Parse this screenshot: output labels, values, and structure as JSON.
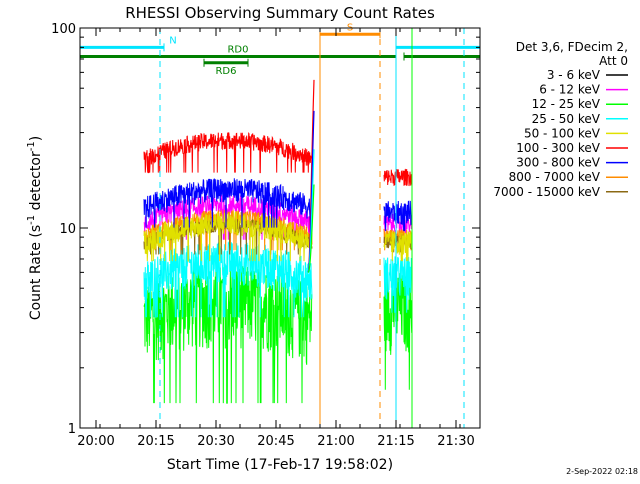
{
  "chart_data": {
    "type": "line",
    "title": "RHESSI Observing Summary Count Rates",
    "xlabel": "Start Time (17-Feb-17 19:58:02)",
    "ylabel_main": "Count Rate (s",
    "ylabel_sup": "-1",
    "ylabel_mid": " detector",
    "ylabel_sup2": "-1",
    "ylabel_end": ")",
    "y_scale": "log",
    "ylim": [
      1,
      100
    ],
    "xlim": [
      "19:56",
      "21:36"
    ],
    "x_ticks": [
      "20:00",
      "20:15",
      "20:30",
      "20:45",
      "21:00",
      "21:15",
      "21:30"
    ],
    "y_ticks": [
      "1",
      "10",
      "100"
    ],
    "legend_title_1": "Det 3,6, FDecim 2,",
    "legend_title_2": "Att 0",
    "legend_placement": "right",
    "series": [
      {
        "name": "3 - 6 keV",
        "color": "#000000"
      },
      {
        "name": "6 - 12 keV",
        "color": "#ff00ff"
      },
      {
        "name": "12 - 25 keV",
        "color": "#00ff00"
      },
      {
        "name": "25 - 50 keV",
        "color": "#00ffff"
      },
      {
        "name": "50 - 100 keV",
        "color": "#e0e000"
      },
      {
        "name": "100 - 300 keV",
        "color": "#ff0000"
      },
      {
        "name": "300 - 800 keV",
        "color": "#0000ff"
      },
      {
        "name": "800 - 7000 keV",
        "color": "#ff8c00"
      },
      {
        "name": "7000 - 15000 keV",
        "color": "#8b6914"
      }
    ],
    "segments": [
      {
        "start": "20:12",
        "end": "20:54"
      },
      {
        "start": "21:12",
        "end": "21:19"
      }
    ],
    "approx_levels": [
      {
        "name": "3 - 6 keV",
        "seg1": null,
        "seg2": null
      },
      {
        "name": "6 - 12 keV",
        "seg1": 10.5,
        "seg2": 10.5
      },
      {
        "name": "12 - 25 keV",
        "seg1": 3.6,
        "seg2": 4.2
      },
      {
        "name": "25 - 50 keV",
        "seg1": 5.5,
        "seg2": 5.8
      },
      {
        "name": "50 - 100 keV",
        "seg1": 8.5,
        "seg2": 8.5
      },
      {
        "name": "100 - 300 keV",
        "seg1": 22,
        "seg2": 18
      },
      {
        "name": "300 - 800 keV",
        "seg1": 12.5,
        "seg2": 12
      },
      {
        "name": "800 - 7000 keV",
        "seg1": 9,
        "seg2": 9
      },
      {
        "name": "7000 - 15000 keV",
        "seg1": 8.3,
        "seg2": 8.5
      }
    ],
    "spike": {
      "time": "20:54",
      "peak": 55
    },
    "flag_bars": [
      {
        "label": "N",
        "color": "#00e5ff",
        "level": 80,
        "start": "19:56",
        "end": "20:17"
      },
      {
        "label": "",
        "color": "#00e5ff",
        "level": 80,
        "start": "21:15",
        "end": "21:36"
      },
      {
        "label": "S",
        "color": "#ff8c00",
        "level": 93,
        "start": "20:56",
        "end": "21:11"
      },
      {
        "label": "RD0",
        "color": "#008000",
        "level": 72,
        "start": "19:56",
        "end": "21:15"
      },
      {
        "label": "",
        "color": "#008000",
        "level": 72,
        "start": "21:17",
        "end": "21:36"
      },
      {
        "label": "RD6",
        "color": "#008000",
        "level": 67,
        "start": "20:27",
        "end": "20:38"
      }
    ],
    "vlines": [
      {
        "time": "19:56",
        "color": "#00e5ff",
        "style": "solid"
      },
      {
        "time": "20:16",
        "color": "#00e5ff",
        "style": "dashed"
      },
      {
        "time": "20:56",
        "color": "#ff8c00",
        "style": "solid"
      },
      {
        "time": "21:11",
        "color": "#ff8c00",
        "style": "dashed"
      },
      {
        "time": "21:15",
        "color": "#00e5ff",
        "style": "solid"
      },
      {
        "time": "21:19",
        "color": "#00ff00",
        "style": "solid"
      },
      {
        "time": "21:32",
        "color": "#00e5ff",
        "style": "dashed"
      }
    ]
  },
  "footer": {
    "timestamp": "2-Sep-2022 02:18"
  }
}
